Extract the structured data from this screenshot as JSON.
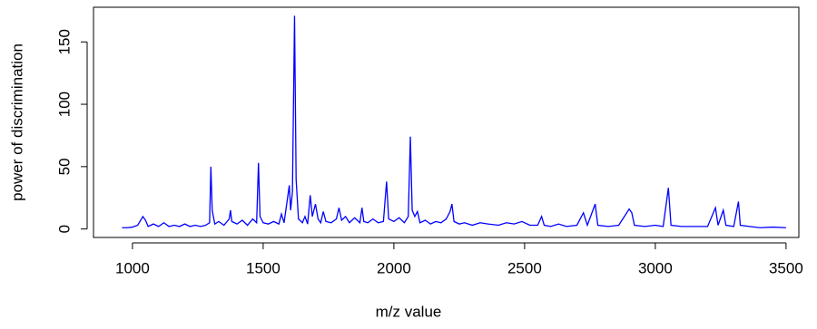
{
  "chart_data": {
    "type": "line",
    "xlabel": "m/z value",
    "ylabel": "power of discrimination",
    "x": [
      960,
      980,
      1000,
      1020,
      1040,
      1050,
      1060,
      1080,
      1100,
      1120,
      1140,
      1160,
      1180,
      1200,
      1220,
      1240,
      1260,
      1280,
      1295,
      1300,
      1305,
      1315,
      1330,
      1350,
      1370,
      1375,
      1380,
      1400,
      1420,
      1440,
      1460,
      1475,
      1482,
      1488,
      1500,
      1520,
      1540,
      1560,
      1570,
      1580,
      1600,
      1605,
      1612,
      1620,
      1626,
      1635,
      1650,
      1660,
      1670,
      1680,
      1688,
      1700,
      1710,
      1720,
      1730,
      1740,
      1760,
      1780,
      1790,
      1800,
      1815,
      1830,
      1850,
      1870,
      1878,
      1885,
      1900,
      1920,
      1940,
      1960,
      1972,
      1980,
      2000,
      2020,
      2040,
      2055,
      2063,
      2070,
      2080,
      2090,
      2100,
      2120,
      2140,
      2160,
      2180,
      2200,
      2215,
      2222,
      2230,
      2250,
      2270,
      2300,
      2330,
      2360,
      2400,
      2430,
      2460,
      2490,
      2520,
      2550,
      2565,
      2575,
      2600,
      2630,
      2660,
      2700,
      2725,
      2740,
      2770,
      2780,
      2820,
      2860,
      2900,
      2910,
      2920,
      2960,
      3000,
      3030,
      3050,
      3060,
      3100,
      3150,
      3200,
      3230,
      3240,
      3260,
      3270,
      3300,
      3318,
      3325,
      3360,
      3400,
      3450,
      3500
    ],
    "series": [
      {
        "color": "#0000ff",
        "values": [
          1,
          1,
          1.5,
          3,
          10,
          7,
          2,
          4,
          2,
          5,
          2,
          3,
          2,
          4,
          2,
          3,
          2,
          3,
          5,
          50,
          15,
          4,
          6,
          3,
          8,
          15,
          6,
          4,
          7,
          3,
          8,
          5,
          53,
          10,
          5,
          4,
          6,
          4,
          12,
          5,
          35,
          15,
          30,
          171,
          40,
          8,
          5,
          10,
          4,
          27,
          10,
          20,
          8,
          5,
          14,
          6,
          5,
          8,
          17,
          7,
          10,
          5,
          9,
          5,
          17,
          6,
          5,
          8,
          5,
          6,
          38,
          8,
          6,
          9,
          5,
          10,
          74,
          15,
          10,
          14,
          5,
          7,
          4,
          6,
          5,
          8,
          14,
          20,
          6,
          4,
          5,
          3,
          5,
          4,
          3,
          5,
          4,
          6,
          3,
          3,
          10,
          3,
          2,
          4,
          2,
          3,
          13,
          3,
          20,
          3,
          2,
          3,
          16,
          13,
          3,
          2,
          3,
          2,
          33,
          3,
          2,
          2,
          2,
          17,
          3,
          15,
          3,
          2,
          22,
          3,
          2,
          1,
          1.5,
          1
        ]
      }
    ],
    "xlim": [
      851,
      3549
    ],
    "ylim": [
      -6.8,
      177.8
    ],
    "xticks": [
      1000,
      1500,
      2000,
      2500,
      3000,
      3500
    ],
    "yticks": [
      0,
      50,
      100,
      150
    ]
  }
}
